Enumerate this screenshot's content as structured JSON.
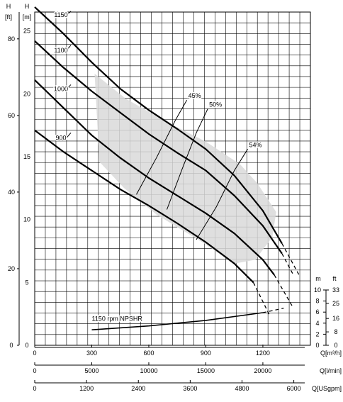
{
  "chart_data": {
    "type": "line",
    "axes": {
      "left_ft": {
        "name": "H",
        "unit": "[ft]",
        "ticks": [
          "0",
          "20",
          "40",
          "60",
          "80"
        ],
        "range": [
          0,
          87
        ]
      },
      "left_m": {
        "name": "H",
        "unit": "[m]",
        "ticks": [
          "0",
          "5",
          "10",
          "15",
          "20",
          "25"
        ],
        "range": [
          0,
          26.5
        ]
      },
      "npsh_m": {
        "name": "m",
        "ticks": [
          "0",
          "2",
          "4",
          "6",
          "8",
          "10"
        ],
        "range": [
          0,
          10
        ]
      },
      "npsh_ft": {
        "name": "ft",
        "ticks": [
          "0",
          "8",
          "16",
          "25",
          "33"
        ],
        "range": [
          0,
          33
        ]
      },
      "x_m3h": {
        "label": "Q[m³/h]",
        "ticks": [
          "0",
          "300",
          "600",
          "900",
          "1200"
        ],
        "range": [
          0,
          1450
        ]
      },
      "x_lmin": {
        "label": "Q[l/min]",
        "ticks": [
          "0",
          "5000",
          "10000",
          "15000",
          "20000"
        ],
        "range": [
          0,
          24167
        ]
      },
      "x_usgpm": {
        "label": "Q[USgpm]",
        "ticks": [
          "0",
          "1200",
          "2400",
          "3600",
          "4800",
          "6000"
        ],
        "range": [
          0,
          6384
        ]
      }
    },
    "series": [
      {
        "name": "1150",
        "x": [
          0,
          150,
          300,
          450,
          600,
          750,
          900,
          1050,
          1200,
          1300
        ],
        "y": [
          26.9,
          24.8,
          22.5,
          20.4,
          18.7,
          17.2,
          15.6,
          13.5,
          10.7,
          8.1
        ],
        "dashed_x": [
          1300,
          1390
        ],
        "dashed_y": [
          8.1,
          5.6
        ]
      },
      {
        "name": "1100",
        "x": [
          0,
          150,
          300,
          450,
          600,
          750,
          900,
          1050,
          1200,
          1300
        ],
        "y": [
          24.2,
          22.1,
          20.2,
          18.5,
          16.8,
          15.3,
          13.9,
          11.9,
          9.5,
          7.3
        ],
        "dashed_x": [
          1300,
          1360
        ],
        "dashed_y": [
          7.3,
          5.6
        ]
      },
      {
        "name": "1000",
        "x": [
          0,
          150,
          300,
          450,
          600,
          750,
          900,
          1050,
          1200,
          1260
        ],
        "y": [
          21.1,
          18.9,
          16.7,
          14.9,
          13.3,
          11.9,
          10.5,
          8.9,
          6.8,
          5.6
        ],
        "dashed_x": [
          1260,
          1355
        ],
        "dashed_y": [
          5.6,
          3.1
        ]
      },
      {
        "name": "900",
        "x": [
          0,
          150,
          300,
          450,
          600,
          750,
          900,
          1050,
          1150
        ],
        "y": [
          17.1,
          15.4,
          13.9,
          12.4,
          11.1,
          9.7,
          8.2,
          6.5,
          5.0
        ],
        "dashed_x": [
          1150,
          1235
        ],
        "dashed_y": [
          5.0,
          2.4
        ]
      }
    ],
    "efficiency": [
      {
        "name": "45%",
        "x": [
          535,
          640,
          740,
          800
        ],
        "y": [
          12.0,
          14.9,
          17.9,
          19.5
        ]
      },
      {
        "name": "50%",
        "x": [
          695,
          775,
          850,
          910
        ],
        "y": [
          10.8,
          14.0,
          16.9,
          18.8
        ]
      },
      {
        "name": "54%",
        "x": [
          850,
          955,
          1050,
          1120
        ],
        "y": [
          8.4,
          11.0,
          13.9,
          15.6
        ]
      }
    ],
    "npshr": {
      "name": "1150 rpm NPSHR",
      "x": [
        300,
        600,
        900,
        1200
      ],
      "y_m": [
        2.8,
        3.5,
        4.5,
        5.9
      ],
      "dashed_x": [
        1200,
        1310
      ],
      "dashed_y_m": [
        5.9,
        6.7
      ]
    },
    "operating_region": {
      "x": [
        315,
        480,
        690,
        900,
        1080,
        1170,
        1270,
        1250,
        1160,
        1050,
        870,
        640,
        470,
        340,
        315
      ],
      "y": [
        21.6,
        19.6,
        17.8,
        16.2,
        14.4,
        12.9,
        10.6,
        8.6,
        6.8,
        6.5,
        8.3,
        10.4,
        12.5,
        14.6,
        21.6
      ]
    }
  }
}
